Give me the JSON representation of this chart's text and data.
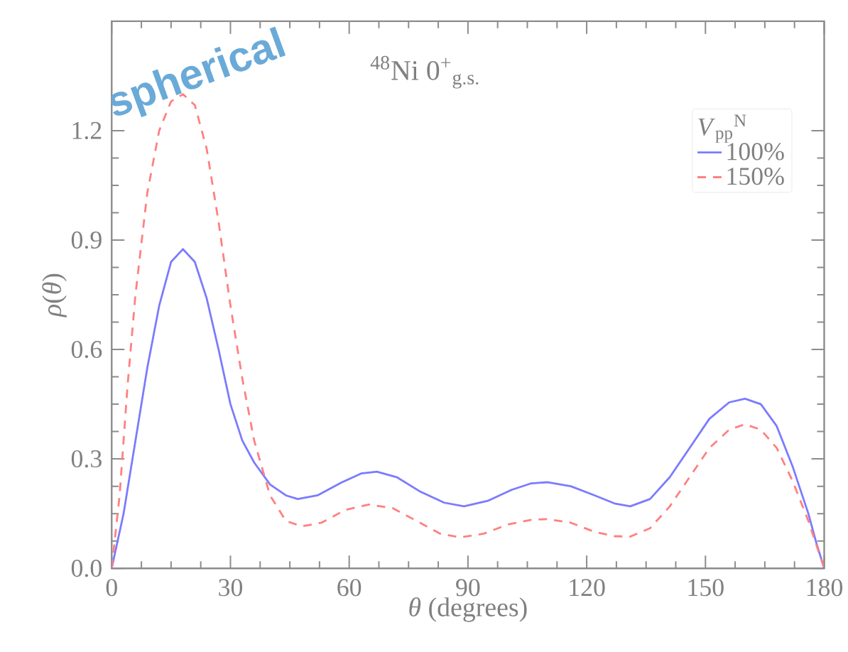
{
  "chart_data": {
    "type": "line",
    "title": "$^{48}$Ni 0$^{+}$$_{g.s.}$",
    "xlabel": "*θ* (degrees)",
    "ylabel": "*ρ*(*θ*)",
    "legend_title": "*V*$_{pp}$$^{N}$",
    "annotations": [
      "spherical"
    ],
    "xlim": [
      0,
      180
    ],
    "ylim": [
      0,
      1.5
    ],
    "xticks": [
      0,
      30,
      60,
      90,
      120,
      150,
      180
    ],
    "yticks": [
      {
        "value": 0,
        "label": "0.0"
      },
      {
        "value": 0.3,
        "label": "0.3"
      },
      {
        "value": 0.6,
        "label": "0.6"
      },
      {
        "value": 0.9,
        "label": "0.9"
      },
      {
        "value": 1.2,
        "label": "1.2"
      }
    ],
    "legend": "top right",
    "grid": false,
    "marker": "none",
    "series": [
      {
        "name": "100%",
        "color": "#7b7bff",
        "line_style": "solid",
        "x": [
          0,
          3,
          6,
          9,
          12,
          15,
          18,
          21,
          24,
          27,
          30,
          33,
          36,
          40,
          44,
          47,
          52,
          58,
          63,
          67,
          72,
          78,
          84,
          89,
          95,
          101,
          106,
          110,
          116,
          122,
          127,
          131,
          136,
          141,
          146,
          151,
          156,
          160,
          164,
          168,
          172,
          176,
          178,
          180
        ],
        "values": [
          0,
          0.15,
          0.35,
          0.55,
          0.72,
          0.84,
          0.875,
          0.84,
          0.74,
          0.6,
          0.45,
          0.35,
          0.29,
          0.23,
          0.2,
          0.19,
          0.2,
          0.235,
          0.26,
          0.265,
          0.25,
          0.21,
          0.18,
          0.17,
          0.185,
          0.215,
          0.233,
          0.236,
          0.225,
          0.2,
          0.178,
          0.17,
          0.19,
          0.25,
          0.33,
          0.41,
          0.455,
          0.465,
          0.45,
          0.39,
          0.28,
          0.15,
          0.07,
          0
        ]
      },
      {
        "name": "150%",
        "color": "#ff8080",
        "line_style": "dashed",
        "x": [
          0,
          2,
          4,
          6,
          9,
          12,
          15,
          18,
          21,
          24,
          27,
          30,
          33,
          36,
          40,
          44,
          48,
          53,
          59,
          65,
          71,
          77,
          83,
          88,
          94,
          100,
          106,
          110,
          116,
          122,
          127,
          131,
          136,
          141,
          146,
          151,
          156,
          160,
          164,
          168,
          172,
          176,
          180
        ],
        "values": [
          0,
          0.2,
          0.5,
          0.75,
          1.03,
          1.2,
          1.28,
          1.3,
          1.27,
          1.15,
          0.95,
          0.72,
          0.52,
          0.35,
          0.2,
          0.13,
          0.115,
          0.125,
          0.16,
          0.175,
          0.165,
          0.13,
          0.095,
          0.085,
          0.095,
          0.12,
          0.133,
          0.135,
          0.125,
          0.1,
          0.088,
          0.087,
          0.11,
          0.17,
          0.25,
          0.33,
          0.38,
          0.395,
          0.38,
          0.33,
          0.24,
          0.13,
          0
        ]
      }
    ]
  }
}
